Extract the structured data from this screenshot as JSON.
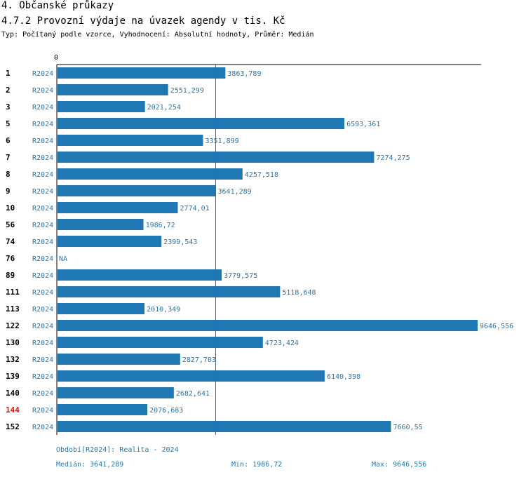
{
  "header": {
    "title": "4. Občanské průkazy",
    "subtitle": "4.7.2 Provozní výdaje na úvazek agendy v tis. Kč",
    "meta": "Typ: Počítaný podle vzorce, Vyhodnocení: Absolutní hodnoty, Průměr: Medián"
  },
  "chart_data": {
    "type": "bar",
    "orientation": "horizontal",
    "axis_zero_label": "0",
    "xlim": [
      0,
      9646.556
    ],
    "reference_line": 3641.289,
    "series_label": "R2024",
    "categories": [
      "1",
      "2",
      "3",
      "5",
      "6",
      "7",
      "8",
      "9",
      "10",
      "56",
      "74",
      "76",
      "89",
      "111",
      "113",
      "122",
      "130",
      "132",
      "139",
      "140",
      "144",
      "152"
    ],
    "values": [
      3863.789,
      2551.299,
      2021.254,
      6593.361,
      3351.899,
      7274.275,
      4257.518,
      3641.289,
      2774.01,
      1986.72,
      2399.543,
      null,
      3779.575,
      5118.648,
      2010.349,
      9646.556,
      4723.424,
      2827.703,
      6140.398,
      2682.641,
      2076.683,
      7660.55
    ],
    "value_labels": [
      "3863,789",
      "2551,299",
      "2021,254",
      "6593,361",
      "3351,899",
      "7274,275",
      "4257,518",
      "3641,289",
      "2774,01",
      "1986,72",
      "2399,543",
      "NA",
      "3779,575",
      "5118,648",
      "2010,349",
      "9646,556",
      "4723,424",
      "2827,703",
      "6140,398",
      "2682,641",
      "2076,683",
      "7660,55"
    ],
    "highlight_category": "144",
    "colors": {
      "bar": "#1f77b4",
      "text": "#1f77b4",
      "highlight": "#ff0000",
      "axis": "#000000"
    }
  },
  "footer": {
    "period": "Období[R2024]: Realita - 2024",
    "median": "Medián: 3641,289",
    "min": "Min: 1986,72",
    "max": "Max: 9646,556"
  }
}
